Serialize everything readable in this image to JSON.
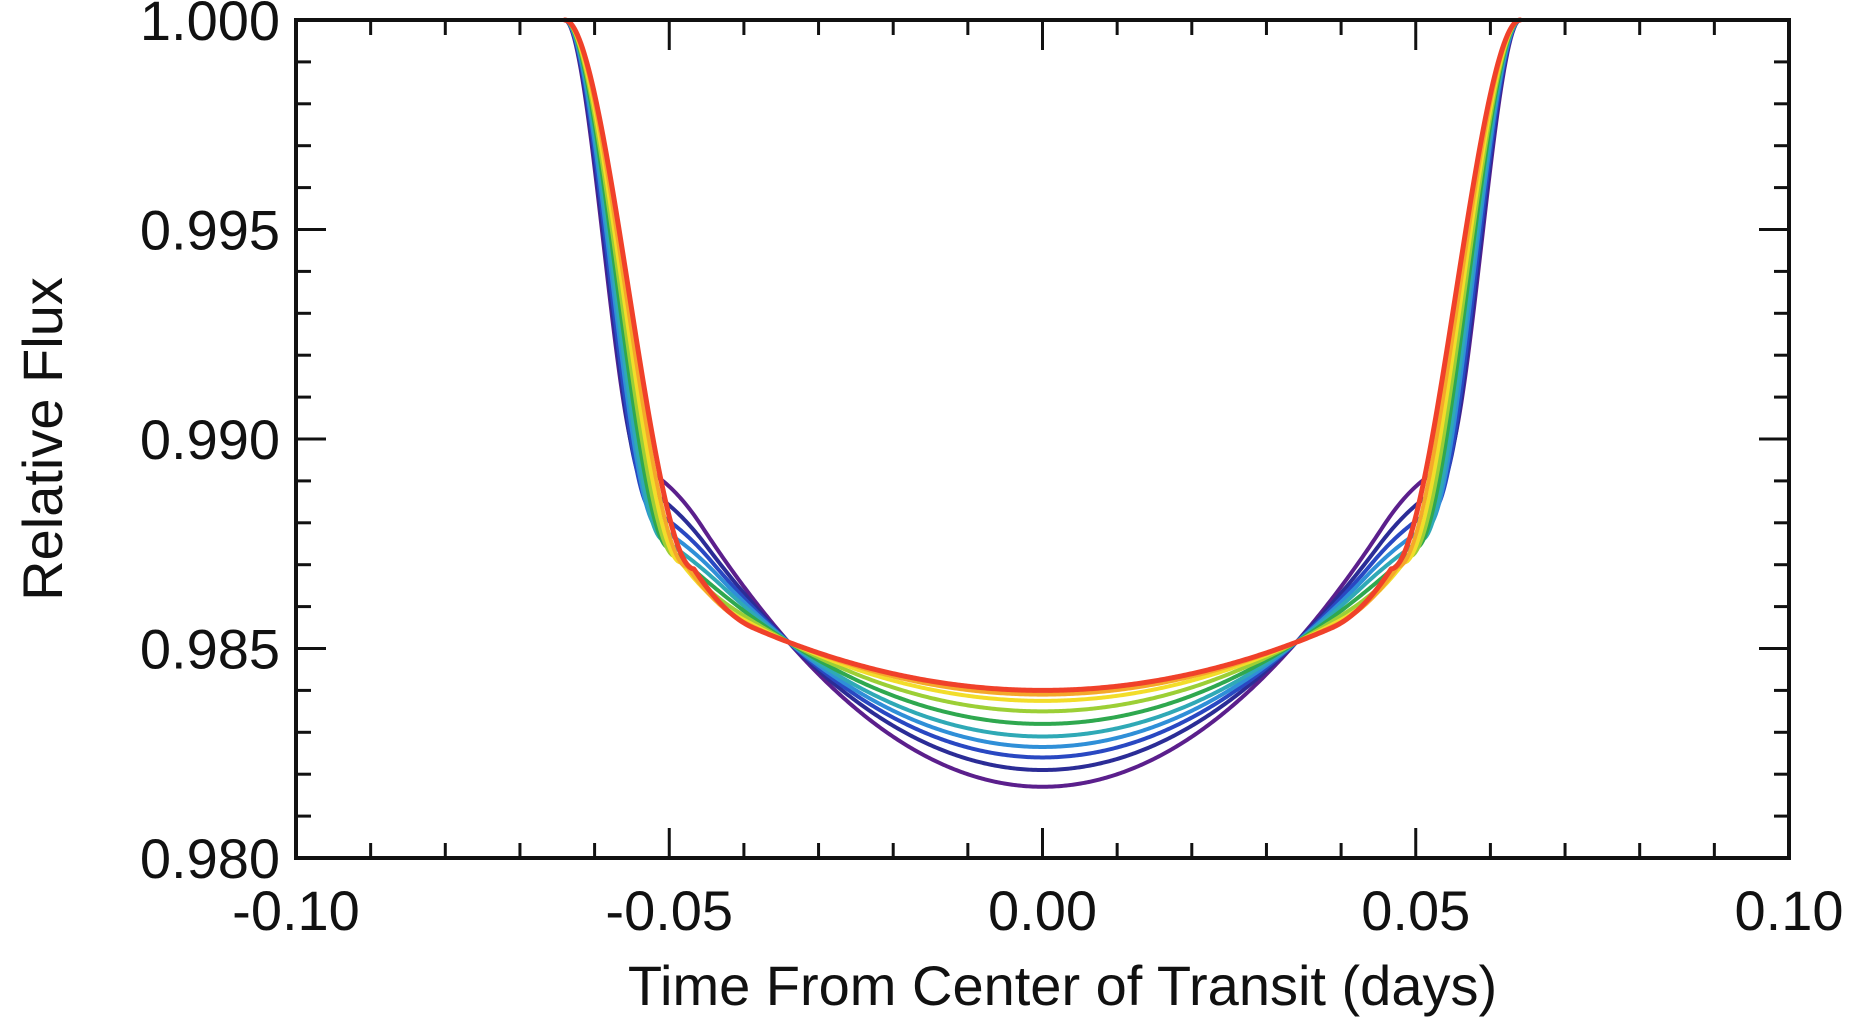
{
  "chart_data": {
    "type": "line",
    "title": "",
    "xlabel": "Time From Center of Transit (days)",
    "ylabel": "Relative Flux",
    "xlim": [
      -0.1,
      0.1
    ],
    "ylim": [
      0.98,
      1.0
    ],
    "xticks": [
      {
        "value": -0.1,
        "label": "-0.10"
      },
      {
        "value": -0.05,
        "label": "-0.05"
      },
      {
        "value": 0.0,
        "label": "0.00"
      },
      {
        "value": 0.05,
        "label": "0.05"
      },
      {
        "value": 0.1,
        "label": "0.10"
      }
    ],
    "yticks": [
      {
        "value": 0.98,
        "label": "0.980"
      },
      {
        "value": 0.985,
        "label": "0.985"
      },
      {
        "value": 0.99,
        "label": "0.990"
      },
      {
        "value": 0.995,
        "label": "0.995"
      },
      {
        "value": 1.0,
        "label": "1.000"
      }
    ],
    "x_minor_step": 0.01,
    "y_minor_step": 0.001,
    "grid": false,
    "legend": "none",
    "transit": {
      "first_contact": 0.064,
      "second_contact": 0.0467,
      "crossing_time": 0.034,
      "crossing_flux": 0.98515
    },
    "series": [
      {
        "color": "#5b1f8c",
        "ingress_x": 0.0536,
        "ingress_flux": 0.9893,
        "center_flux": 0.9817
      },
      {
        "color": "#2b2c96",
        "ingress_x": 0.053,
        "ingress_flux": 0.9888,
        "center_flux": 0.9821
      },
      {
        "color": "#2948c2",
        "ingress_x": 0.0523,
        "ingress_flux": 0.9883,
        "center_flux": 0.9824
      },
      {
        "color": "#2f8fd8",
        "ingress_x": 0.0515,
        "ingress_flux": 0.9879,
        "center_flux": 0.98265
      },
      {
        "color": "#2fa9b6",
        "ingress_x": 0.0508,
        "ingress_flux": 0.9876,
        "center_flux": 0.9829
      },
      {
        "color": "#2fa84f",
        "ingress_x": 0.05,
        "ingress_flux": 0.9874,
        "center_flux": 0.9832
      },
      {
        "color": "#9ccf36",
        "ingress_x": 0.0492,
        "ingress_flux": 0.9872,
        "center_flux": 0.9835
      },
      {
        "color": "#f2dd2a",
        "ingress_x": 0.0484,
        "ingress_flux": 0.98705,
        "center_flux": 0.98375
      },
      {
        "color": "#f5a82a",
        "ingress_x": 0.0476,
        "ingress_flux": 0.98695,
        "center_flux": 0.9839
      },
      {
        "color": "#f0412a",
        "ingress_x": 0.0467,
        "ingress_flux": 0.9869,
        "center_flux": 0.984
      }
    ]
  }
}
